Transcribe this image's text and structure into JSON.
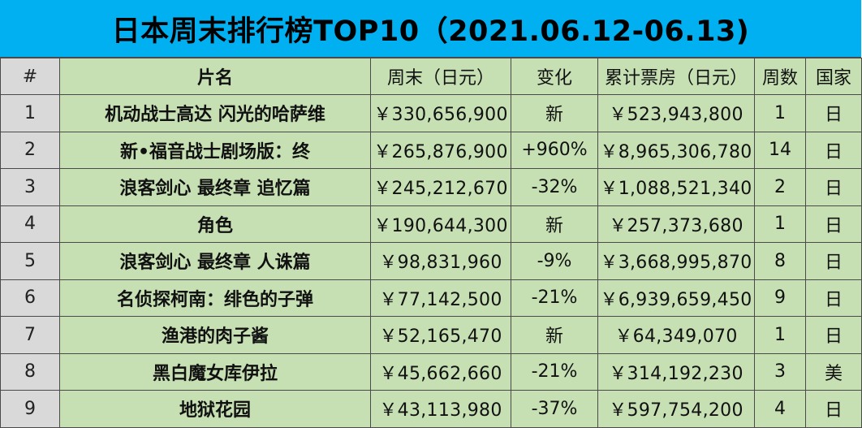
{
  "title": "日本周末排行榜TOP10（2021.06.12-06.13)",
  "headers": {
    "rank": "#",
    "name": "片名",
    "weekend": "周末（日元）",
    "change": "变化",
    "cumulative": "累计票房（日元）",
    "weeks": "周数",
    "country": "国家"
  },
  "rows": [
    {
      "rank": "1",
      "name": "机动战士高达 闪光的哈萨维",
      "weekend": "￥330,656,900",
      "change": "新",
      "cumulative": "￥523,943,800",
      "weeks": "1",
      "country": "日"
    },
    {
      "rank": "2",
      "name": "新•福音战士剧场版：终",
      "weekend": "￥265,876,900",
      "change": "+960%",
      "cumulative": "￥8,965,306,780",
      "weeks": "14",
      "country": "日"
    },
    {
      "rank": "3",
      "name": "浪客剑心 最终章 追忆篇",
      "weekend": "￥245,212,670",
      "change": "-32%",
      "cumulative": "￥1,088,521,340",
      "weeks": "2",
      "country": "日"
    },
    {
      "rank": "4",
      "name": "角色",
      "weekend": "￥190,644,300",
      "change": "新",
      "cumulative": "￥257,373,680",
      "weeks": "1",
      "country": "日"
    },
    {
      "rank": "5",
      "name": "浪客剑心 最终章 人诛篇",
      "weekend": "￥98,831,960",
      "change": "-9%",
      "cumulative": "￥3,668,995,870",
      "weeks": "8",
      "country": "日"
    },
    {
      "rank": "6",
      "name": "名侦探柯南：绯色的子弹",
      "weekend": "￥77,142,500",
      "change": "-21%",
      "cumulative": "￥6,939,659,450",
      "weeks": "9",
      "country": "日"
    },
    {
      "rank": "7",
      "name": "渔港的肉子酱",
      "weekend": "￥52,165,470",
      "change": "新",
      "cumulative": "￥64,349,070",
      "weeks": "1",
      "country": "日"
    },
    {
      "rank": "8",
      "name": "黑白魔女库伊拉",
      "weekend": "￥45,662,660",
      "change": "-21%",
      "cumulative": "￥314,192,230",
      "weeks": "3",
      "country": "美"
    },
    {
      "rank": "9",
      "name": "地狱花园",
      "weekend": "￥43,113,980",
      "change": "-37%",
      "cumulative": "￥597,754,200",
      "weeks": "4",
      "country": "日"
    }
  ],
  "colors": {
    "title_bg": "#00b0f0",
    "cell_bg": "#c6e0b4",
    "rank_col_bg": "#d9d9d9",
    "grid_line": "#4a4a4a"
  }
}
